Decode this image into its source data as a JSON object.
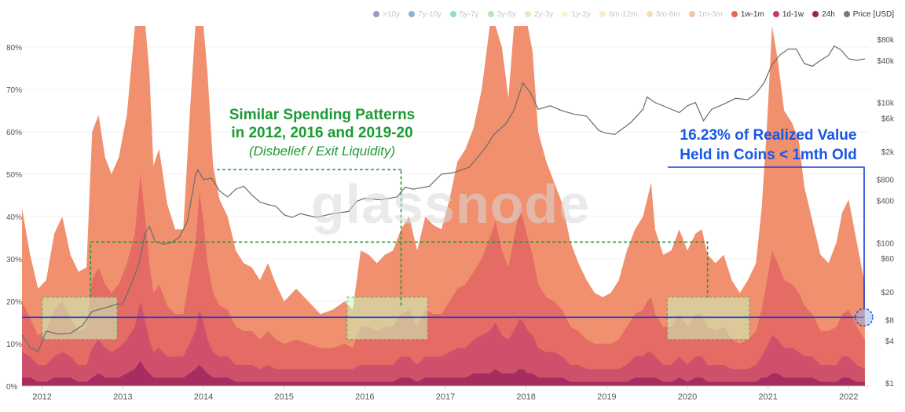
{
  "legend": {
    "items": [
      {
        "label": ">10y",
        "color": "#5b4da8",
        "active": false
      },
      {
        "label": "7y-10y",
        "color": "#3b82c4",
        "active": false
      },
      {
        "label": "5y-7y",
        "color": "#43c1b0",
        "active": false
      },
      {
        "label": "3y-5y",
        "color": "#8fd18a",
        "active": false
      },
      {
        "label": "2y-3y",
        "color": "#c6e68e",
        "active": false
      },
      {
        "label": "1y-2y",
        "color": "#eff4a6",
        "active": false
      },
      {
        "label": "6m-12m",
        "color": "#f6e09a",
        "active": false
      },
      {
        "label": "3m-6m",
        "color": "#f5c478",
        "active": false
      },
      {
        "label": "1m-3m",
        "color": "#f29f64",
        "active": false
      },
      {
        "label": "1w-1m",
        "color": "#e8654e",
        "active": true
      },
      {
        "label": "1d-1w",
        "color": "#c93a5c",
        "active": true
      },
      {
        "label": "24h",
        "color": "#9c1f55",
        "active": true
      },
      {
        "label": "Price [USD]",
        "color": "#7a7a7a",
        "active": true
      }
    ]
  },
  "watermark": "glassnode",
  "annotations": {
    "green_line1": "Similar Spending Patterns",
    "green_line2": "in 2012, 2016 and 2019-20",
    "green_line3": "(Disbelief / Exit Liquidity)",
    "blue_line1": "16.23% of Realized Value",
    "blue_line2": "Held in Coins < 1mth Old"
  },
  "colors": {
    "band_1m_3m": "#f08a66",
    "band_1w_1m": "#e36a63",
    "band_1d_1w": "#cc4f6c",
    "band_24h": "#a42a5f",
    "price": "#6b6b6b",
    "green": "#1b9a33",
    "blue": "#1a3cd9"
  },
  "chart_data": {
    "type": "area",
    "stacked": true,
    "x_unit": "year",
    "x_ticks": [
      "2012",
      "2013",
      "2014",
      "2015",
      "2016",
      "2017",
      "2018",
      "2019",
      "2020",
      "2021",
      "2022"
    ],
    "x_range": [
      2011.75,
      2022.25
    ],
    "y_left_ticks": [
      "0%",
      "10%",
      "20%",
      "30%",
      "40%",
      "50%",
      "60%",
      "70%",
      "80%"
    ],
    "y_left_range": [
      0,
      80
    ],
    "y_right_ticks": [
      "$1",
      "$4",
      "$8",
      "$20",
      "$60",
      "$100",
      "$400",
      "$800",
      "$2k",
      "$6k",
      "$10k",
      "$40k",
      "$80k"
    ],
    "y_right_scale": "log",
    "y_right_range": [
      1,
      80000
    ],
    "x": [
      2011.75,
      2011.85,
      2011.95,
      2012.05,
      2012.15,
      2012.25,
      2012.35,
      2012.45,
      2012.55,
      2012.62,
      2012.7,
      2012.78,
      2012.86,
      2012.95,
      2013.05,
      2013.15,
      2013.22,
      2013.28,
      2013.33,
      2013.38,
      2013.45,
      2013.55,
      2013.65,
      2013.75,
      2013.83,
      2013.9,
      2013.95,
      2014.0,
      2014.05,
      2014.12,
      2014.2,
      2014.3,
      2014.4,
      2014.5,
      2014.6,
      2014.7,
      2014.8,
      2014.9,
      2015.0,
      2015.15,
      2015.3,
      2015.45,
      2015.6,
      2015.75,
      2015.85,
      2015.95,
      2016.05,
      2016.15,
      2016.25,
      2016.35,
      2016.45,
      2016.55,
      2016.65,
      2016.75,
      2016.85,
      2016.95,
      2017.05,
      2017.15,
      2017.25,
      2017.35,
      2017.45,
      2017.55,
      2017.62,
      2017.7,
      2017.78,
      2017.85,
      2017.92,
      2017.97,
      2018.02,
      2018.08,
      2018.15,
      2018.25,
      2018.35,
      2018.45,
      2018.55,
      2018.65,
      2018.75,
      2018.85,
      2018.95,
      2019.05,
      2019.15,
      2019.25,
      2019.35,
      2019.45,
      2019.5,
      2019.55,
      2019.6,
      2019.7,
      2019.8,
      2019.9,
      2020.0,
      2020.1,
      2020.18,
      2020.25,
      2020.35,
      2020.45,
      2020.55,
      2020.65,
      2020.75,
      2020.85,
      2020.92,
      2020.98,
      2021.05,
      2021.12,
      2021.2,
      2021.3,
      2021.38,
      2021.45,
      2021.55,
      2021.65,
      2021.75,
      2021.85,
      2021.92,
      2022.0,
      2022.1,
      2022.2
    ],
    "series": [
      {
        "name": "1m-3m",
        "values": [
          22,
          15,
          11,
          12,
          18,
          20,
          15,
          14,
          14,
          35,
          36,
          30,
          28,
          30,
          35,
          58,
          85,
          60,
          45,
          30,
          32,
          24,
          20,
          20,
          38,
          55,
          82,
          72,
          45,
          30,
          25,
          22,
          18,
          16,
          15,
          14,
          16,
          13,
          10,
          12,
          10,
          8,
          9,
          10,
          9,
          18,
          17,
          16,
          17,
          18,
          20,
          22,
          18,
          22,
          21,
          20,
          24,
          30,
          32,
          34,
          40,
          52,
          56,
          48,
          40,
          55,
          67,
          62,
          56,
          48,
          36,
          32,
          28,
          25,
          20,
          16,
          14,
          12,
          11,
          12,
          14,
          18,
          20,
          22,
          24,
          27,
          20,
          17,
          18,
          20,
          18,
          19,
          20,
          17,
          16,
          17,
          14,
          12,
          14,
          16,
          24,
          35,
          53,
          48,
          40,
          38,
          36,
          28,
          22,
          18,
          16,
          20,
          24,
          26,
          20,
          13
        ]
      },
      {
        "name": "1w-1m",
        "values": [
          12,
          9,
          7,
          8,
          11,
          12,
          9,
          8,
          9,
          16,
          17,
          15,
          14,
          15,
          18,
          22,
          30,
          24,
          18,
          14,
          15,
          12,
          10,
          10,
          16,
          20,
          28,
          24,
          18,
          14,
          12,
          11,
          9,
          8,
          8,
          7,
          8,
          7,
          6,
          7,
          6,
          5,
          5,
          6,
          5,
          9,
          9,
          8,
          9,
          9,
          10,
          11,
          9,
          11,
          10,
          10,
          12,
          14,
          15,
          16,
          18,
          22,
          24,
          20,
          17,
          22,
          26,
          24,
          22,
          19,
          15,
          13,
          12,
          11,
          9,
          8,
          7,
          6,
          6,
          6,
          7,
          9,
          10,
          11,
          12,
          13,
          10,
          9,
          9,
          10,
          9,
          10,
          10,
          9,
          8,
          9,
          7,
          6,
          7,
          8,
          11,
          15,
          20,
          18,
          16,
          15,
          14,
          12,
          10,
          8,
          8,
          9,
          10,
          11,
          9,
          7
        ]
      },
      {
        "name": "1d-1w",
        "values": [
          6,
          5,
          4,
          4,
          5,
          6,
          5,
          4,
          4,
          7,
          8,
          7,
          6,
          7,
          8,
          10,
          14,
          11,
          8,
          6,
          7,
          5,
          5,
          5,
          7,
          9,
          13,
          11,
          8,
          6,
          5,
          5,
          4,
          4,
          4,
          3,
          4,
          3,
          3,
          3,
          3,
          3,
          3,
          3,
          3,
          4,
          4,
          4,
          4,
          4,
          5,
          5,
          4,
          5,
          5,
          5,
          6,
          7,
          7,
          8,
          9,
          10,
          11,
          9,
          8,
          10,
          12,
          11,
          10,
          9,
          7,
          6,
          6,
          5,
          4,
          4,
          3,
          3,
          3,
          3,
          3,
          4,
          5,
          5,
          6,
          6,
          5,
          4,
          4,
          5,
          4,
          5,
          5,
          4,
          4,
          4,
          3,
          3,
          3,
          4,
          5,
          7,
          9,
          8,
          7,
          7,
          6,
          5,
          5,
          4,
          4,
          4,
          5,
          5,
          4,
          3
        ]
      },
      {
        "name": "24h",
        "values": [
          2,
          2,
          1,
          1,
          2,
          2,
          2,
          1,
          1,
          2,
          3,
          2,
          2,
          2,
          3,
          4,
          6,
          4,
          3,
          2,
          2,
          2,
          2,
          2,
          3,
          4,
          5,
          4,
          3,
          2,
          2,
          2,
          1,
          1,
          1,
          1,
          1,
          1,
          1,
          1,
          1,
          1,
          1,
          1,
          1,
          1,
          1,
          1,
          1,
          1,
          2,
          2,
          1,
          2,
          2,
          2,
          2,
          2,
          2,
          3,
          3,
          3,
          4,
          3,
          3,
          3,
          4,
          4,
          3,
          3,
          2,
          2,
          2,
          2,
          1,
          1,
          1,
          1,
          1,
          1,
          1,
          1,
          2,
          2,
          2,
          2,
          2,
          1,
          1,
          2,
          1,
          2,
          2,
          1,
          1,
          1,
          1,
          1,
          1,
          1,
          2,
          2,
          3,
          3,
          2,
          2,
          2,
          2,
          2,
          1,
          1,
          1,
          2,
          2,
          1,
          1
        ]
      }
    ],
    "price": {
      "name": "Price [USD]",
      "x": [
        2011.75,
        2011.85,
        2011.95,
        2012.05,
        2012.2,
        2012.35,
        2012.5,
        2012.62,
        2012.75,
        2012.9,
        2013.0,
        2013.1,
        2013.2,
        2013.28,
        2013.33,
        2013.4,
        2013.5,
        2013.6,
        2013.7,
        2013.8,
        2013.9,
        2013.93,
        2014.0,
        2014.1,
        2014.2,
        2014.3,
        2014.4,
        2014.5,
        2014.6,
        2014.7,
        2014.8,
        2014.9,
        2015.0,
        2015.1,
        2015.2,
        2015.4,
        2015.6,
        2015.8,
        2015.9,
        2016.0,
        2016.2,
        2016.4,
        2016.5,
        2016.6,
        2016.8,
        2016.95,
        2017.1,
        2017.3,
        2017.5,
        2017.6,
        2017.75,
        2017.85,
        2017.96,
        2018.05,
        2018.15,
        2018.3,
        2018.45,
        2018.6,
        2018.75,
        2018.9,
        2018.97,
        2019.1,
        2019.3,
        2019.45,
        2019.5,
        2019.6,
        2019.75,
        2019.9,
        2020.0,
        2020.1,
        2020.2,
        2020.3,
        2020.45,
        2020.6,
        2020.75,
        2020.85,
        2020.95,
        2021.05,
        2021.15,
        2021.25,
        2021.35,
        2021.45,
        2021.55,
        2021.65,
        2021.75,
        2021.82,
        2021.9,
        2022.0,
        2022.1,
        2022.2
      ],
      "values": [
        4.8,
        3.2,
        2.8,
        5.5,
        5.0,
        5.1,
        6.6,
        10.5,
        11.5,
        13,
        13.5,
        25,
        50,
        140,
        170,
        105,
        95,
        100,
        120,
        200,
        900,
        1100,
        800,
        830,
        550,
        450,
        580,
        640,
        480,
        380,
        350,
        330,
        250,
        230,
        260,
        230,
        260,
        280,
        390,
        430,
        410,
        450,
        620,
        580,
        640,
        950,
        1000,
        1200,
        2300,
        3500,
        5000,
        7800,
        19000,
        14000,
        8000,
        9000,
        7600,
        6800,
        6400,
        4000,
        3700,
        3500,
        5200,
        8000,
        12000,
        10000,
        8500,
        7200,
        9000,
        10000,
        5500,
        8000,
        9500,
        11500,
        11000,
        13500,
        19000,
        35000,
        48000,
        58000,
        58000,
        36000,
        33000,
        40000,
        47000,
        64000,
        57000,
        42000,
        40000,
        42000
      ]
    },
    "reference": {
      "label": "16.23% of Realized Value Held in Coins < 1mth Old",
      "y": 16.23
    },
    "highlights": [
      {
        "x_start": 2012.0,
        "x_end": 2012.93,
        "y_low": 11,
        "y_high": 21
      },
      {
        "x_start": 2015.78,
        "x_end": 2016.78,
        "y_low": 11,
        "y_high": 21
      },
      {
        "x_start": 2019.75,
        "x_end": 2020.77,
        "y_low": 11,
        "y_high": 21
      }
    ],
    "green_bracket": {
      "x_start": 2012.6,
      "x_end": 2020.25,
      "x_mid": 2016.45,
      "y_top": 34
    }
  }
}
